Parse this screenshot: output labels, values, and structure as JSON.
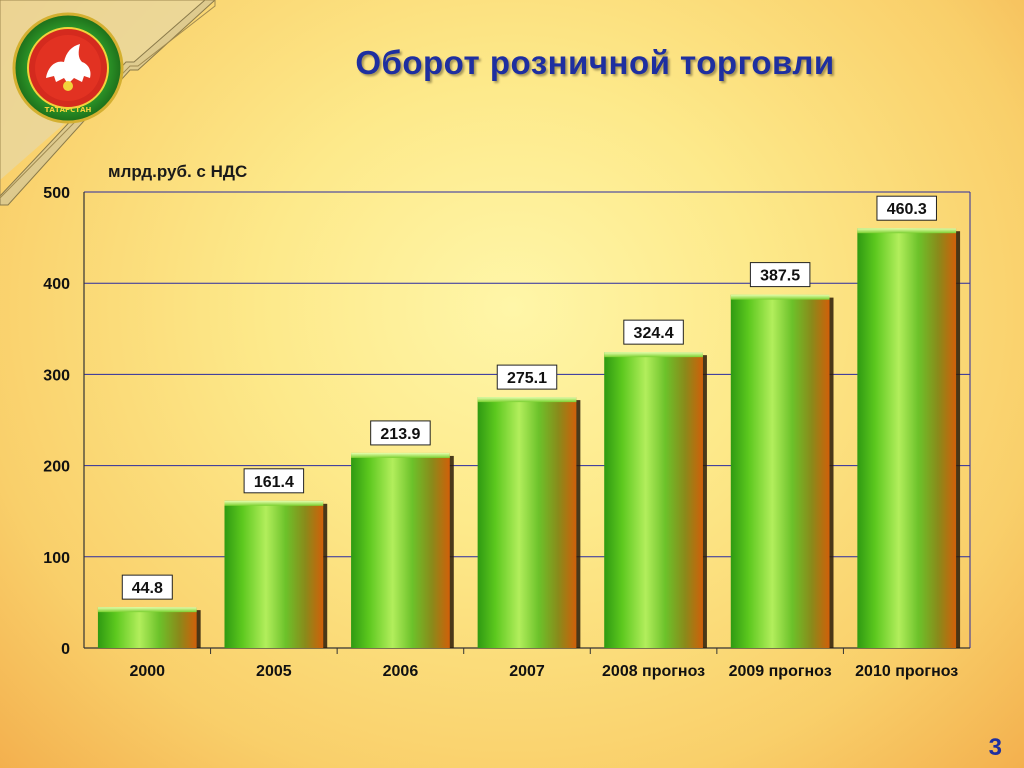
{
  "slide": {
    "title": "Оборот розничной торговли",
    "unit_label": "млрд.руб. с НДС",
    "page_number": "3",
    "emblem_text": "ТАТАРСТАН",
    "colors": {
      "title": "#1e2fa0",
      "bar_light": "#9ee64a",
      "bar_green": "#2f9a12",
      "bar_orange": "#d0600a",
      "grid": "#2a2aa0"
    }
  },
  "chart_data": {
    "type": "bar",
    "categories": [
      "2000",
      "2005",
      "2006",
      "2007",
      "2008 прогноз",
      "2009 прогноз",
      "2010 прогноз"
    ],
    "values": [
      44.8,
      161.4,
      213.9,
      275.1,
      324.4,
      387.5,
      460.3
    ],
    "data_labels": [
      "44.8",
      "161.4",
      "213.9",
      "275.1",
      "324.4",
      "387.5",
      "460.3"
    ],
    "title": "Оборот розничной торговли",
    "ylabel": "млрд.руб. с НДС",
    "ylim": [
      0,
      500
    ],
    "yticks": [
      0,
      100,
      200,
      300,
      400,
      500
    ],
    "grid": true,
    "legend": "none"
  }
}
